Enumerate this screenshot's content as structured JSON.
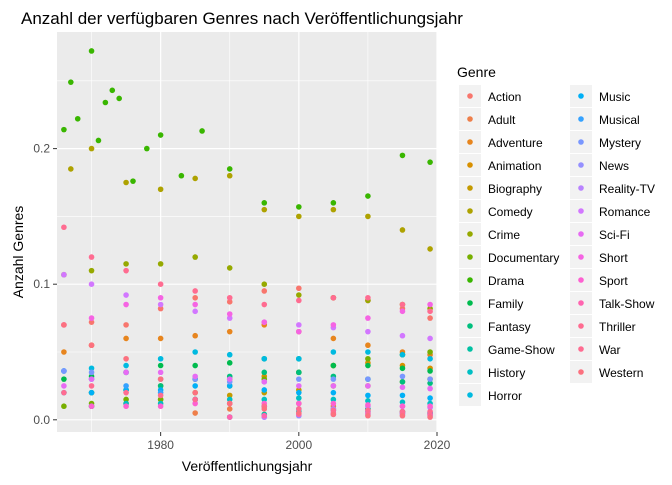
{
  "chart_data": {
    "type": "scatter",
    "title": "Anzahl der verfügbaren Genres nach Veröffentlichungsjahr",
    "xlabel": "Veröffentlichungsjahr",
    "ylabel": "Anzahl Genres",
    "xlim": [
      1965,
      2020
    ],
    "ylim": [
      -0.009,
      0.286
    ],
    "x_ticks": [
      1980,
      2000,
      2020
    ],
    "x_tick_labels": [
      "1980",
      "2000",
      "2020"
    ],
    "y_ticks": [
      0.0,
      0.1,
      0.2
    ],
    "y_tick_labels": [
      "0.0",
      "0.1",
      "0.2"
    ],
    "grid": true,
    "legend": {
      "title": "Genre",
      "placement": "right"
    },
    "series": [
      {
        "name": "Action",
        "color": "#F8766D",
        "x": [
          1966,
          1970,
          1975,
          1980,
          1985,
          1990,
          1995,
          2000,
          2005,
          2010,
          2015,
          2019
        ],
        "y": [
          0.07,
          0.072,
          0.07,
          0.082,
          0.09,
          0.087,
          0.095,
          0.097,
          0.09,
          0.088,
          0.082,
          0.075
        ]
      },
      {
        "name": "Adult",
        "color": "#EE7F4A",
        "x": [
          1985,
          1990,
          1995,
          2000,
          2005,
          2010,
          2015,
          2019
        ],
        "y": [
          0.005,
          0.008,
          0.01,
          0.012,
          0.01,
          0.008,
          0.006,
          0.004
        ]
      },
      {
        "name": "Adventure",
        "color": "#E7851E",
        "x": [
          1966,
          1970,
          1975,
          1980,
          1985,
          1990,
          1995,
          2000,
          2005,
          2010,
          2015,
          2019
        ],
        "y": [
          0.05,
          0.055,
          0.06,
          0.06,
          0.062,
          0.065,
          0.07,
          0.065,
          0.06,
          0.055,
          0.05,
          0.048
        ]
      },
      {
        "name": "Animation",
        "color": "#D89000",
        "x": [
          1970,
          1975,
          1980,
          1985,
          1990,
          1995,
          2000,
          2005,
          2010,
          2015,
          2019
        ],
        "y": [
          0.02,
          0.022,
          0.025,
          0.03,
          0.03,
          0.032,
          0.035,
          0.04,
          0.042,
          0.04,
          0.038
        ]
      },
      {
        "name": "Biography",
        "color": "#C49A00",
        "x": [
          1970,
          1975,
          1980,
          1985,
          1990,
          1995,
          2000,
          2005,
          2010,
          2015,
          2019
        ],
        "y": [
          0.01,
          0.012,
          0.015,
          0.015,
          0.018,
          0.02,
          0.022,
          0.025,
          0.025,
          0.028,
          0.03
        ]
      },
      {
        "name": "Comedy",
        "color": "#AEA200",
        "x": [
          1967,
          1970,
          1975,
          1980,
          1985,
          1990,
          1995,
          2000,
          2005,
          2010,
          2015,
          2019
        ],
        "y": [
          0.185,
          0.2,
          0.175,
          0.17,
          0.178,
          0.18,
          0.155,
          0.15,
          0.155,
          0.15,
          0.14,
          0.126
        ]
      },
      {
        "name": "Crime",
        "color": "#96A900",
        "x": [
          1966,
          1970,
          1975,
          1980,
          1985,
          1990,
          1995,
          2000,
          2005,
          2010,
          2015,
          2019
        ],
        "y": [
          0.107,
          0.11,
          0.115,
          0.115,
          0.12,
          0.112,
          0.1,
          0.092,
          0.09,
          0.088,
          0.085,
          0.082
        ]
      },
      {
        "name": "Documentary",
        "color": "#77AF00",
        "x": [
          1966,
          1970,
          1975,
          1980,
          1985,
          1990,
          1995,
          2000,
          2005,
          2010,
          2015,
          2019
        ],
        "y": [
          0.01,
          0.012,
          0.015,
          0.015,
          0.02,
          0.025,
          0.03,
          0.035,
          0.04,
          0.045,
          0.048,
          0.05
        ]
      },
      {
        "name": "Drama",
        "color": "#39B600",
        "x": [
          1966,
          1967,
          1968,
          1970,
          1971,
          1972,
          1973,
          1974,
          1976,
          1978,
          1980,
          1983,
          1986,
          1990,
          1995,
          2000,
          2005,
          2010,
          2015,
          2019
        ],
        "y": [
          0.214,
          0.249,
          0.222,
          0.272,
          0.206,
          0.234,
          0.243,
          0.237,
          0.176,
          0.2,
          0.21,
          0.18,
          0.213,
          0.185,
          0.16,
          0.157,
          0.16,
          0.165,
          0.195,
          0.19
        ]
      },
      {
        "name": "Family",
        "color": "#00BB4E",
        "x": [
          1966,
          1970,
          1975,
          1980,
          1985,
          1990,
          1995,
          2000,
          2005,
          2010,
          2015,
          2019
        ],
        "y": [
          0.03,
          0.032,
          0.035,
          0.04,
          0.04,
          0.042,
          0.045,
          0.045,
          0.04,
          0.04,
          0.038,
          0.036
        ]
      },
      {
        "name": "Fantasy",
        "color": "#00BF7D",
        "x": [
          1970,
          1975,
          1980,
          1985,
          1990,
          1995,
          2000,
          2005,
          2010,
          2015,
          2019
        ],
        "y": [
          0.02,
          0.022,
          0.025,
          0.03,
          0.032,
          0.035,
          0.035,
          0.032,
          0.03,
          0.028,
          0.027
        ]
      },
      {
        "name": "Game-Show",
        "color": "#00C1A3",
        "x": [
          1990,
          1995,
          2000,
          2005,
          2010,
          2015,
          2019
        ],
        "y": [
          0.002,
          0.004,
          0.006,
          0.008,
          0.008,
          0.006,
          0.005
        ]
      },
      {
        "name": "History",
        "color": "#00BFC4",
        "x": [
          1970,
          1975,
          1980,
          1985,
          1990,
          1995,
          2000,
          2005,
          2010,
          2015,
          2019
        ],
        "y": [
          0.01,
          0.012,
          0.012,
          0.015,
          0.015,
          0.015,
          0.016,
          0.015,
          0.014,
          0.013,
          0.012
        ]
      },
      {
        "name": "Horror",
        "color": "#00BAE0",
        "x": [
          1966,
          1970,
          1975,
          1980,
          1985,
          1990,
          1995,
          2000,
          2005,
          2010,
          2015,
          2019
        ],
        "y": [
          0.036,
          0.038,
          0.04,
          0.045,
          0.05,
          0.048,
          0.045,
          0.045,
          0.05,
          0.05,
          0.048,
          0.045
        ]
      },
      {
        "name": "Music",
        "color": "#00B0F6",
        "x": [
          1966,
          1970,
          1975,
          1980,
          1985,
          1990,
          1995,
          2000,
          2005,
          2010,
          2015,
          2019
        ],
        "y": [
          0.02,
          0.02,
          0.022,
          0.022,
          0.025,
          0.025,
          0.022,
          0.02,
          0.02,
          0.018,
          0.018,
          0.016
        ]
      },
      {
        "name": "Musical",
        "color": "#35A2FF",
        "x": [
          1966,
          1970,
          1975,
          1980,
          1985,
          1990,
          1995,
          2000,
          2005,
          2010,
          2015,
          2019
        ],
        "y": [
          0.036,
          0.03,
          0.025,
          0.02,
          0.015,
          0.012,
          0.01,
          0.008,
          0.007,
          0.006,
          0.005,
          0.005
        ]
      },
      {
        "name": "Mystery",
        "color": "#7997FF",
        "x": [
          1966,
          1970,
          1975,
          1980,
          1985,
          1990,
          1995,
          2000,
          2005,
          2010,
          2015,
          2019
        ],
        "y": [
          0.036,
          0.035,
          0.035,
          0.03,
          0.03,
          0.028,
          0.028,
          0.03,
          0.03,
          0.03,
          0.032,
          0.03
        ]
      },
      {
        "name": "News",
        "color": "#9590FF",
        "x": [
          1995,
          2000,
          2005,
          2010,
          2015,
          2019
        ],
        "y": [
          0.002,
          0.003,
          0.004,
          0.004,
          0.004,
          0.003
        ]
      },
      {
        "name": "Reality-TV",
        "color": "#B983FF",
        "x": [
          1995,
          2000,
          2005,
          2010,
          2015,
          2019
        ],
        "y": [
          0.002,
          0.005,
          0.008,
          0.01,
          0.01,
          0.009
        ]
      },
      {
        "name": "Romance",
        "color": "#D277FF",
        "x": [
          1966,
          1970,
          1975,
          1980,
          1985,
          1990,
          1995,
          2000,
          2005,
          2010,
          2015,
          2019
        ],
        "y": [
          0.107,
          0.1,
          0.092,
          0.085,
          0.08,
          0.075,
          0.072,
          0.07,
          0.068,
          0.065,
          0.062,
          0.06
        ]
      },
      {
        "name": "Sci-Fi",
        "color": "#E76BF3",
        "x": [
          1966,
          1970,
          1975,
          1980,
          1985,
          1990,
          1995,
          2000,
          2005,
          2010,
          2015,
          2019
        ],
        "y": [
          0.025,
          0.03,
          0.035,
          0.035,
          0.032,
          0.03,
          0.028,
          0.025,
          0.025,
          0.025,
          0.024,
          0.023
        ]
      },
      {
        "name": "Short",
        "color": "#F564E3",
        "x": [
          1966,
          1970,
          1975,
          1980,
          1985,
          1990,
          1995,
          2000,
          2005,
          2010,
          2015,
          2019
        ],
        "y": [
          0.07,
          0.075,
          0.085,
          0.09,
          0.085,
          0.078,
          0.072,
          0.065,
          0.07,
          0.075,
          0.08,
          0.085
        ]
      },
      {
        "name": "Sport",
        "color": "#FD61D1",
        "x": [
          1970,
          1975,
          1980,
          1985,
          1990,
          1995,
          2000,
          2005,
          2010,
          2015,
          2019
        ],
        "y": [
          0.01,
          0.01,
          0.01,
          0.012,
          0.012,
          0.012,
          0.012,
          0.012,
          0.011,
          0.01,
          0.01
        ]
      },
      {
        "name": "Talk-Show",
        "color": "#FF64B0",
        "x": [
          1990,
          1995,
          2000,
          2005,
          2010,
          2015,
          2019
        ],
        "y": [
          0.002,
          0.003,
          0.004,
          0.005,
          0.005,
          0.005,
          0.004
        ]
      },
      {
        "name": "Thriller",
        "color": "#FF6C91",
        "x": [
          1966,
          1970,
          1975,
          1980,
          1985,
          1990,
          1995,
          2000,
          2005,
          2010,
          2015,
          2019
        ],
        "y": [
          0.142,
          0.12,
          0.11,
          0.1,
          0.095,
          0.09,
          0.085,
          0.088,
          0.09,
          0.09,
          0.085,
          0.08
        ]
      },
      {
        "name": "War",
        "color": "#FF6C91",
        "x": [
          1966,
          1970,
          1975,
          1980,
          1985,
          1990,
          1995,
          2000,
          2005,
          2010,
          2015,
          2019
        ],
        "y": [
          0.02,
          0.025,
          0.02,
          0.018,
          0.015,
          0.012,
          0.01,
          0.008,
          0.007,
          0.007,
          0.006,
          0.006
        ]
      },
      {
        "name": "Western",
        "color": "#FC717F",
        "x": [
          1966,
          1970,
          1975,
          1980,
          1985,
          1990,
          1995,
          2000,
          2005,
          2010,
          2015,
          2019
        ],
        "y": [
          0.07,
          0.055,
          0.045,
          0.03,
          0.02,
          0.012,
          0.008,
          0.005,
          0.004,
          0.003,
          0.003,
          0.002
        ]
      }
    ]
  }
}
